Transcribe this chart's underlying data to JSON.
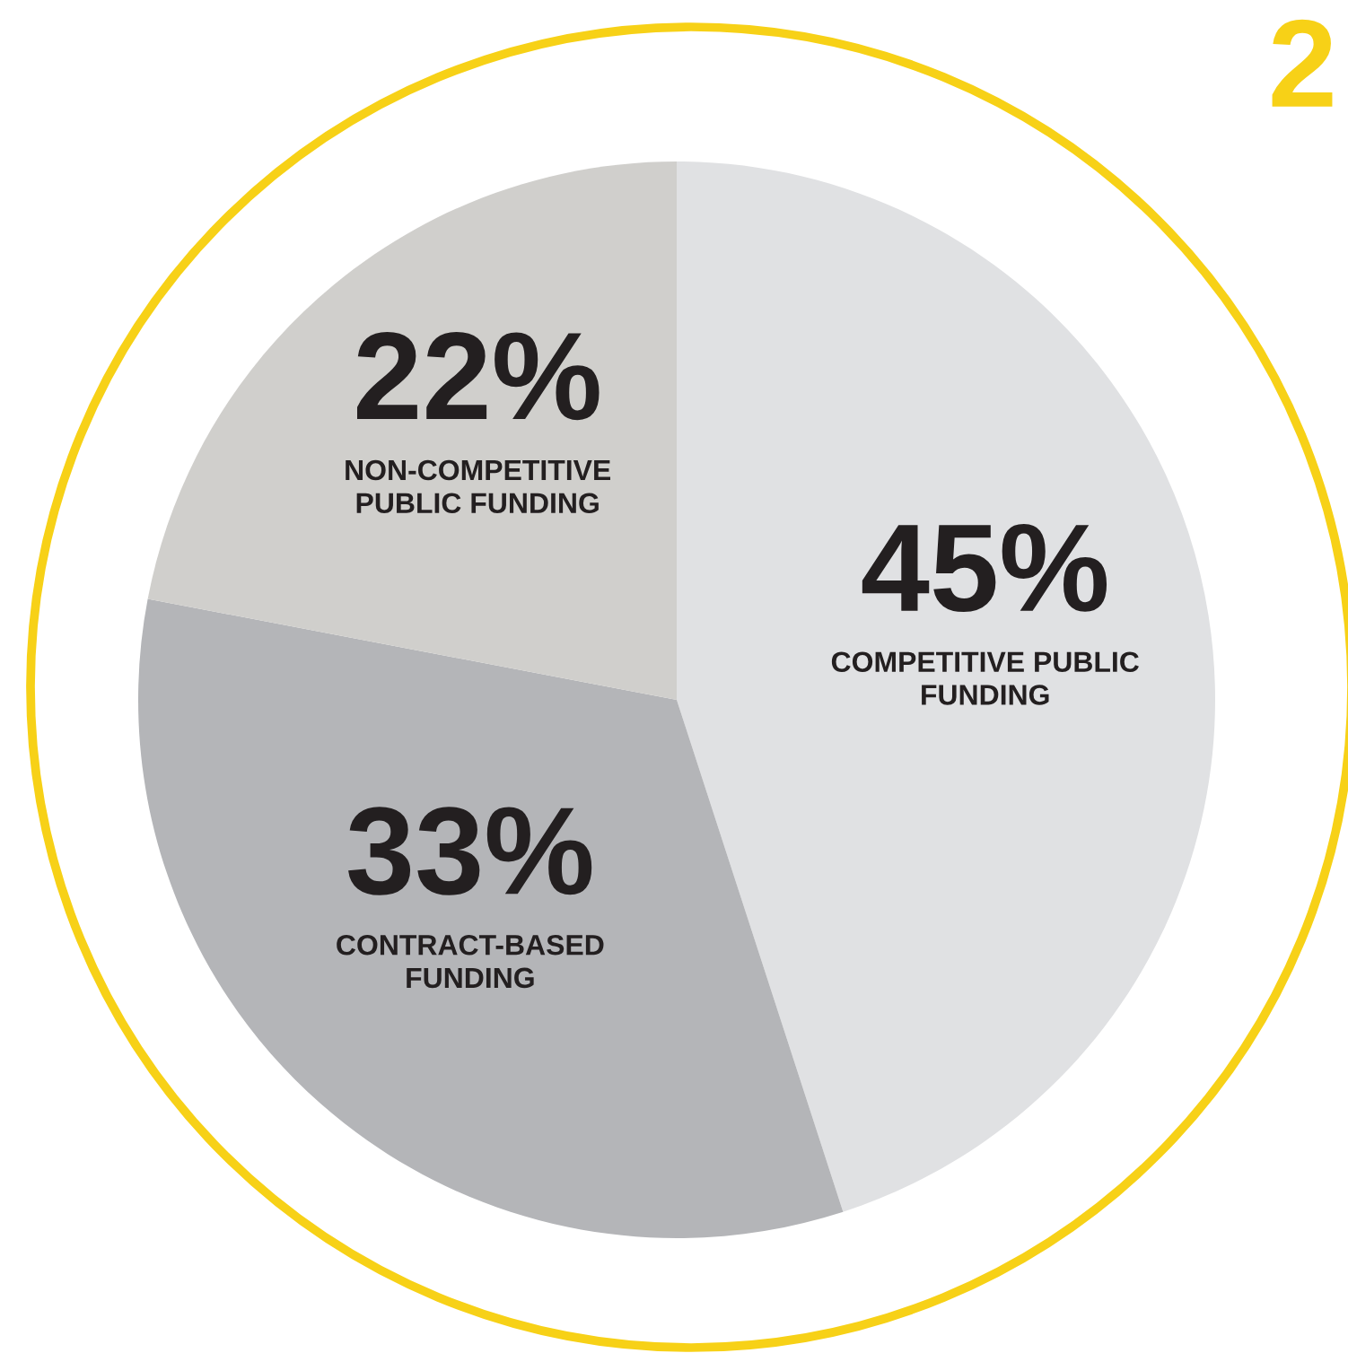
{
  "chart_data": {
    "type": "pie",
    "categories": [
      "COMPETITIVE PUBLIC\nFUNDING",
      "CONTRACT-BASED\nFUNDING",
      "NON-COMPETITIVE\nPUBLIC FUNDING"
    ],
    "values": [
      45,
      33,
      22
    ],
    "colors": [
      "#e0e1e3",
      "#b4b5b8",
      "#d0cfcc"
    ],
    "value_labels": [
      "45%",
      "33%",
      "22%"
    ],
    "annotations": [
      "2"
    ]
  }
}
